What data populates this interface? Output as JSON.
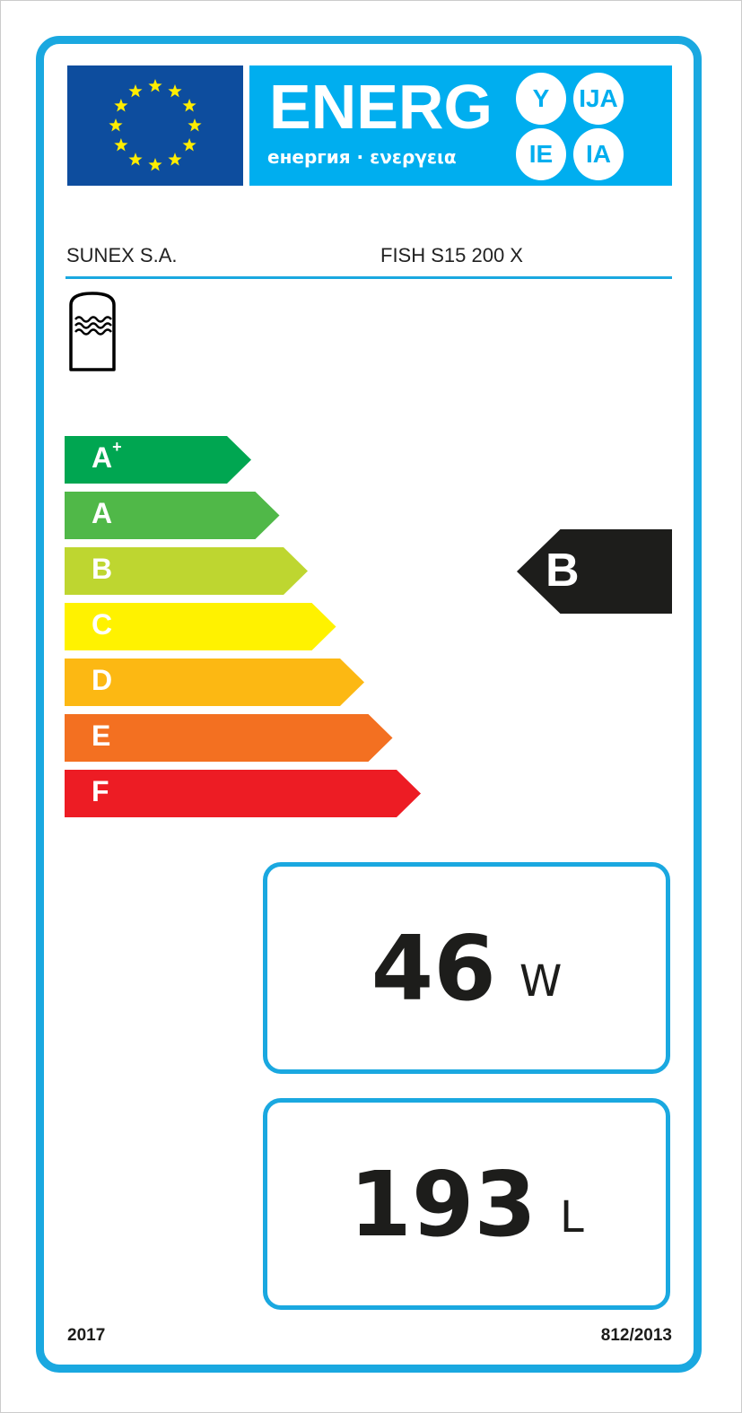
{
  "header": {
    "energy_word": "ENERG",
    "energy_subtitle": "енергия · ενεργεια",
    "language_suffixes": [
      "Y",
      "IJA",
      "IE",
      "IA"
    ],
    "flag": "eu-flag"
  },
  "supplier": "SUNEX S.A.",
  "model": "FISH S15 200 X",
  "appliance_icon": "hot-water-storage-tank-icon",
  "scale": [
    {
      "label": "A",
      "sup": "+",
      "color": "#00a651"
    },
    {
      "label": "A",
      "sup": "",
      "color": "#50b848"
    },
    {
      "label": "B",
      "sup": "",
      "color": "#bed630"
    },
    {
      "label": "C",
      "sup": "",
      "color": "#fff200"
    },
    {
      "label": "D",
      "sup": "",
      "color": "#fcb813"
    },
    {
      "label": "E",
      "sup": "",
      "color": "#f37021"
    },
    {
      "label": "F",
      "sup": "",
      "color": "#ed1c24"
    }
  ],
  "rating": {
    "class": "B",
    "color": "#1d1d1b"
  },
  "standing_loss": {
    "value": "46",
    "unit": "W"
  },
  "storage_volume": {
    "value": "193",
    "unit": "L"
  },
  "footer": {
    "year": "2017",
    "regulation": "812/2013"
  },
  "colors": {
    "accent": "#1aa8e0",
    "banner": "#00aeef",
    "flag_blue": "#0d4d9e",
    "stars": "#ffed00"
  }
}
